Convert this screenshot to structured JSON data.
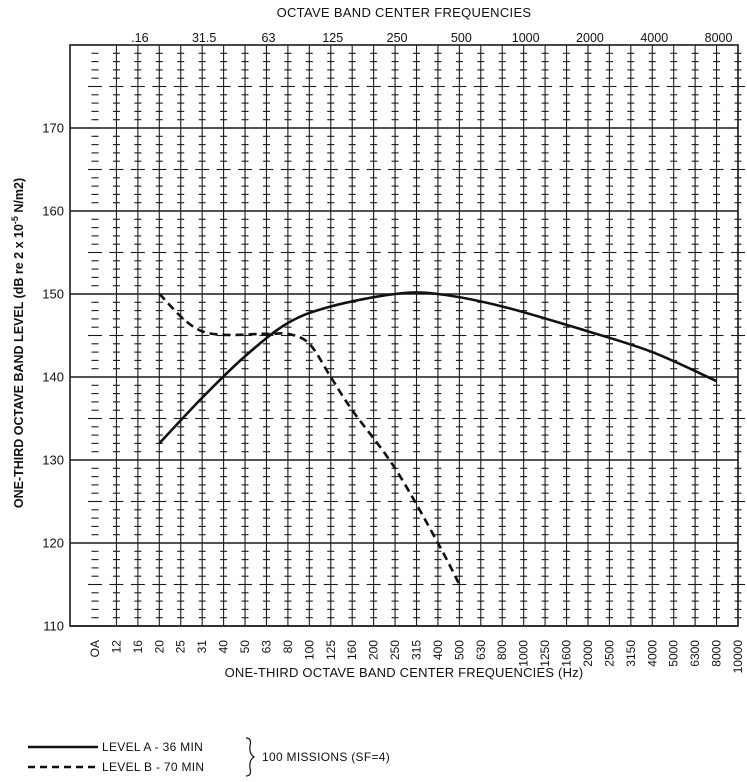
{
  "chart_data": {
    "type": "line",
    "title": "OCTAVE BAND CENTER FREQUENCIES",
    "top_categories": [
      ".16",
      "31.5",
      "63",
      "125",
      "250",
      "500",
      "1000",
      "2000",
      "4000",
      "8000"
    ],
    "xlabel": "ONE-THIRD OCTAVE BAND CENTER FREQUENCIES (Hz)",
    "ylabel": "ONE-THIRD OCTAVE BAND LEVEL (dB re 2 x 10-5 N/m2)",
    "ylabel_parts": {
      "pre": "ONE-THIRD OCTAVE BAND LEVEL (dB re 2 x 10",
      "sup": "-5",
      "post": " N/m2)"
    },
    "x_categories": [
      "OA",
      "12",
      "16",
      "20",
      "25",
      "31",
      "40",
      "50",
      "63",
      "80",
      "100",
      "125",
      "160",
      "200",
      "250",
      "315",
      "400",
      "500",
      "630",
      "800",
      "1000",
      "1250",
      "1600",
      "2000",
      "2500",
      "3150",
      "4000",
      "5000",
      "6300",
      "8000",
      "10000"
    ],
    "ylim": [
      110,
      180
    ],
    "y_ticks": [
      110,
      120,
      130,
      140,
      150,
      160,
      170
    ],
    "grid": true,
    "series": [
      {
        "name": "LEVEL A - 36 MIN",
        "style": "solid",
        "x": [
          "20",
          "31",
          "50",
          "80",
          "125",
          "250",
          "400",
          "800",
          "2000",
          "4000",
          "8000"
        ],
        "y": [
          132,
          137.5,
          142.5,
          146.5,
          148.5,
          150,
          150,
          148.5,
          145.5,
          143,
          139.5
        ]
      },
      {
        "name": "LEVEL B - 70 MIN",
        "style": "dashed",
        "x": [
          "20",
          "31",
          "63",
          "80",
          "100",
          "125",
          "160",
          "250",
          "400",
          "500"
        ],
        "y": [
          150,
          145.5,
          145.2,
          145.2,
          144,
          140,
          136,
          129,
          120,
          115
        ]
      }
    ],
    "legend_note": "100 MISSIONS (SF=4)",
    "legend_position": "bottom-left",
    "colors": {
      "line": "#111111",
      "grid": "#1a1a1a",
      "background": "#ffffff"
    }
  }
}
